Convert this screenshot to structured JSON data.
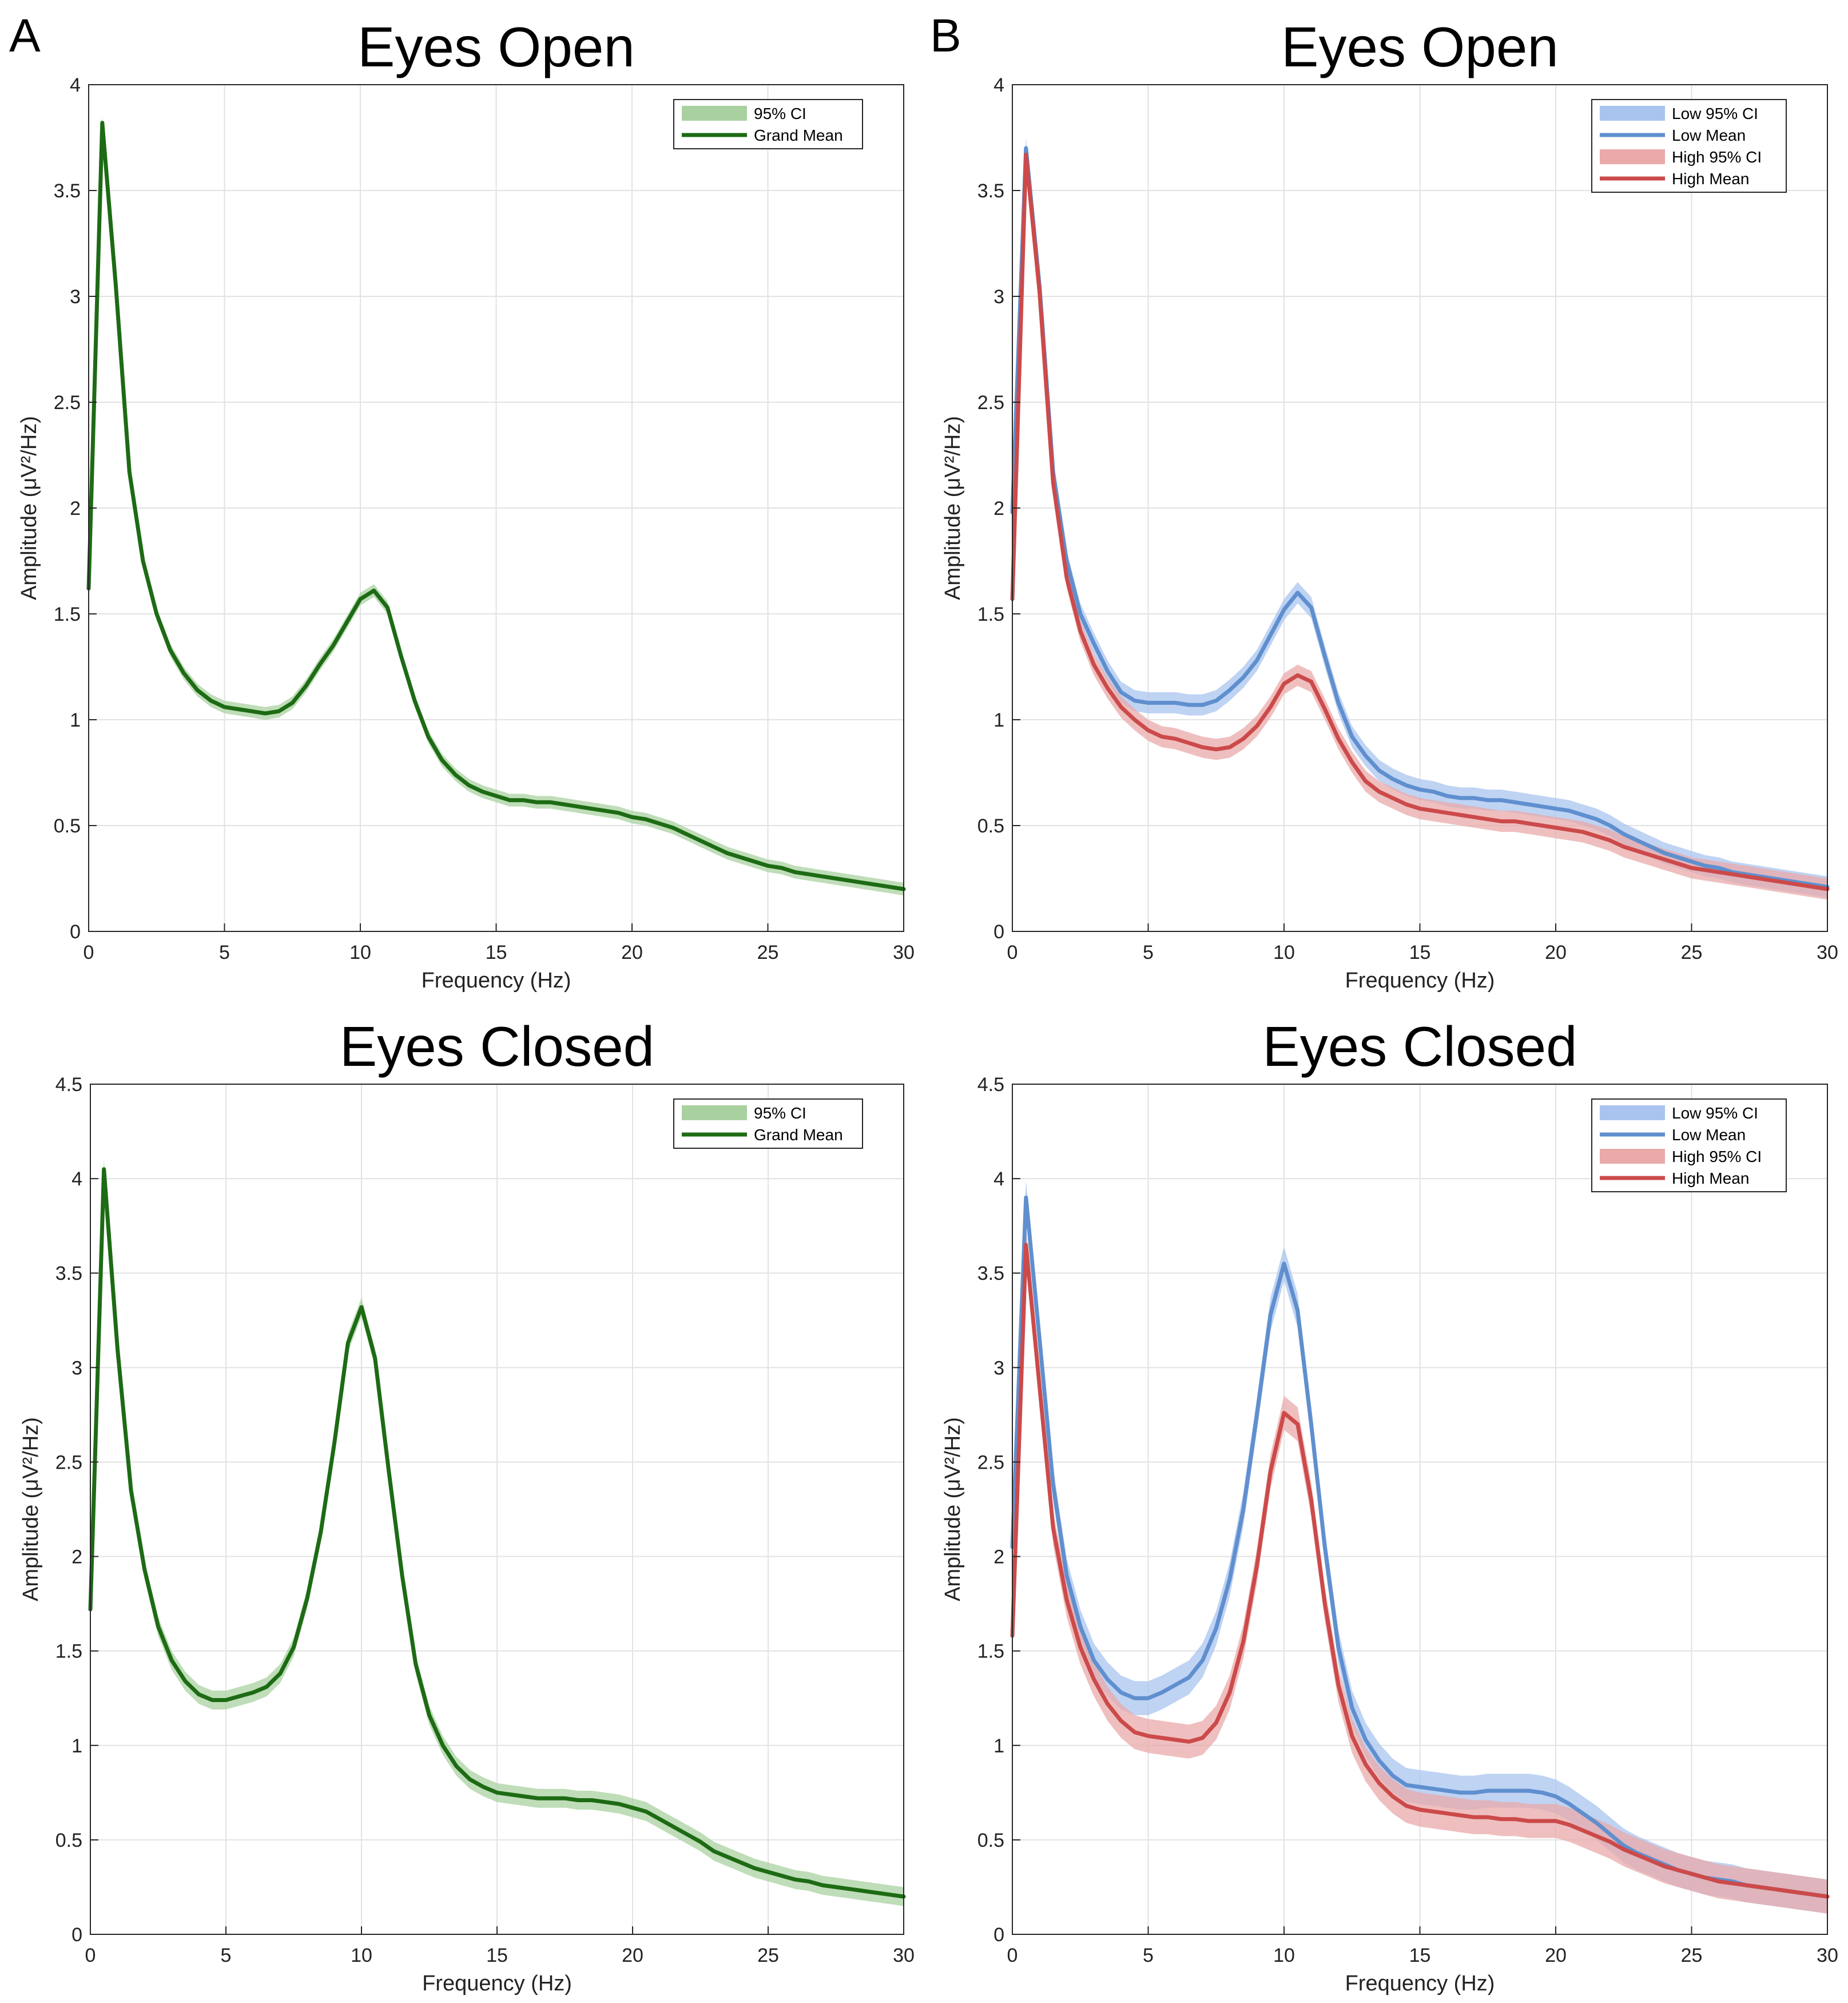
{
  "panel_letters": [
    "A",
    "B"
  ],
  "chart_data": [
    {
      "type": "line",
      "panel": "A",
      "title": "Eyes Open",
      "xlabel": "Frequency (Hz)",
      "ylabel": "Amplitude (μV²/Hz)",
      "xlim": [
        0,
        30
      ],
      "ylim": [
        0,
        4
      ],
      "xticks": [
        0,
        5,
        10,
        15,
        20,
        25,
        30
      ],
      "yticks": [
        0,
        0.5,
        1,
        1.5,
        2,
        2.5,
        3,
        3.5,
        4
      ],
      "grid": true,
      "legend": {
        "location": "top-right",
        "entries": [
          "95% CI",
          "Grand Mean"
        ]
      },
      "x": [
        0,
        0.5,
        1,
        1.5,
        2,
        2.5,
        3,
        3.5,
        4,
        4.5,
        5,
        5.5,
        6,
        6.5,
        7,
        7.5,
        8,
        8.5,
        9,
        9.5,
        10,
        10.5,
        11,
        11.5,
        12,
        12.5,
        13,
        13.5,
        14,
        14.5,
        15,
        15.5,
        16,
        16.5,
        17,
        17.5,
        18,
        18.5,
        19,
        19.5,
        20,
        20.5,
        21,
        21.5,
        22,
        22.5,
        23,
        23.5,
        24,
        24.5,
        25,
        25.5,
        26,
        26.5,
        27,
        27.5,
        28,
        28.5,
        29,
        29.5,
        30
      ],
      "series": [
        {
          "name": "Grand Mean",
          "color": "#1d6b14",
          "ci_color": "#a9d1a0",
          "ci": 0.03,
          "values": [
            1.62,
            3.82,
            3.05,
            2.17,
            1.75,
            1.5,
            1.33,
            1.22,
            1.14,
            1.09,
            1.06,
            1.05,
            1.04,
            1.03,
            1.04,
            1.08,
            1.16,
            1.26,
            1.35,
            1.46,
            1.57,
            1.61,
            1.53,
            1.3,
            1.09,
            0.92,
            0.81,
            0.74,
            0.69,
            0.66,
            0.64,
            0.62,
            0.62,
            0.61,
            0.61,
            0.6,
            0.59,
            0.58,
            0.57,
            0.56,
            0.54,
            0.53,
            0.51,
            0.49,
            0.46,
            0.43,
            0.4,
            0.37,
            0.35,
            0.33,
            0.31,
            0.3,
            0.28,
            0.27,
            0.26,
            0.25,
            0.24,
            0.23,
            0.22,
            0.21,
            0.2
          ]
        }
      ]
    },
    {
      "type": "line",
      "panel": "B",
      "title": "Eyes Open",
      "xlabel": "Frequency (Hz)",
      "ylabel": "Amplitude (μV²/Hz)",
      "xlim": [
        0,
        30
      ],
      "ylim": [
        0,
        4
      ],
      "xticks": [
        0,
        5,
        10,
        15,
        20,
        25,
        30
      ],
      "yticks": [
        0,
        0.5,
        1,
        1.5,
        2,
        2.5,
        3,
        3.5,
        4
      ],
      "grid": true,
      "legend": {
        "location": "top-right",
        "entries": [
          "Low 95% CI",
          "Low Mean",
          "High 95% CI",
          "High Mean"
        ]
      },
      "x": [
        0,
        0.5,
        1,
        1.5,
        2,
        2.5,
        3,
        3.5,
        4,
        4.5,
        5,
        5.5,
        6,
        6.5,
        7,
        7.5,
        8,
        8.5,
        9,
        9.5,
        10,
        10.5,
        11,
        11.5,
        12,
        12.5,
        13,
        13.5,
        14,
        14.5,
        15,
        15.5,
        16,
        16.5,
        17,
        17.5,
        18,
        18.5,
        19,
        19.5,
        20,
        20.5,
        21,
        21.5,
        22,
        22.5,
        23,
        23.5,
        24,
        24.5,
        25,
        25.5,
        26,
        26.5,
        27,
        27.5,
        28,
        28.5,
        29,
        29.5,
        30
      ],
      "series": [
        {
          "name": "Low Mean",
          "color": "#5f8fce",
          "ci_color": "#a9c4ef",
          "ci": 0.05,
          "values": [
            1.98,
            3.7,
            3.05,
            2.17,
            1.75,
            1.5,
            1.36,
            1.23,
            1.13,
            1.09,
            1.08,
            1.08,
            1.08,
            1.07,
            1.07,
            1.09,
            1.14,
            1.2,
            1.28,
            1.4,
            1.52,
            1.6,
            1.53,
            1.3,
            1.08,
            0.92,
            0.83,
            0.76,
            0.72,
            0.69,
            0.67,
            0.66,
            0.64,
            0.63,
            0.63,
            0.62,
            0.62,
            0.61,
            0.6,
            0.59,
            0.58,
            0.57,
            0.55,
            0.53,
            0.5,
            0.46,
            0.43,
            0.4,
            0.37,
            0.35,
            0.33,
            0.31,
            0.3,
            0.28,
            0.27,
            0.26,
            0.25,
            0.24,
            0.23,
            0.22,
            0.21
          ]
        },
        {
          "name": "High Mean",
          "color": "#cc4a4a",
          "ci_color": "#e9aaa9",
          "ci": 0.05,
          "values": [
            1.57,
            3.67,
            3.02,
            2.12,
            1.67,
            1.42,
            1.26,
            1.15,
            1.06,
            1.0,
            0.95,
            0.92,
            0.91,
            0.89,
            0.87,
            0.86,
            0.87,
            0.91,
            0.97,
            1.06,
            1.17,
            1.21,
            1.18,
            1.05,
            0.91,
            0.8,
            0.71,
            0.66,
            0.63,
            0.6,
            0.58,
            0.57,
            0.56,
            0.55,
            0.54,
            0.53,
            0.52,
            0.52,
            0.51,
            0.5,
            0.49,
            0.48,
            0.47,
            0.45,
            0.43,
            0.4,
            0.38,
            0.36,
            0.34,
            0.32,
            0.3,
            0.29,
            0.28,
            0.27,
            0.26,
            0.25,
            0.24,
            0.23,
            0.22,
            0.21,
            0.2
          ]
        }
      ]
    },
    {
      "type": "line",
      "panel": "A",
      "title": "Eyes Closed",
      "xlabel": "Frequency (Hz)",
      "ylabel": "Amplitude (μV²/Hz)",
      "xlim": [
        0,
        30
      ],
      "ylim": [
        0,
        4.5
      ],
      "xticks": [
        0,
        5,
        10,
        15,
        20,
        25,
        30
      ],
      "yticks": [
        0,
        0.5,
        1,
        1.5,
        2,
        2.5,
        3,
        3.5,
        4,
        4.5
      ],
      "grid": true,
      "legend": {
        "location": "top-right",
        "entries": [
          "95% CI",
          "Grand Mean"
        ]
      },
      "x": [
        0,
        0.5,
        1,
        1.5,
        2,
        2.5,
        3,
        3.5,
        4,
        4.5,
        5,
        5.5,
        6,
        6.5,
        7,
        7.5,
        8,
        8.5,
        9,
        9.5,
        10,
        10.5,
        11,
        11.5,
        12,
        12.5,
        13,
        13.5,
        14,
        14.5,
        15,
        15.5,
        16,
        16.5,
        17,
        17.5,
        18,
        18.5,
        19,
        19.5,
        20,
        20.5,
        21,
        21.5,
        22,
        22.5,
        23,
        23.5,
        24,
        24.5,
        25,
        25.5,
        26,
        26.5,
        27,
        27.5,
        28,
        28.5,
        29,
        29.5,
        30
      ],
      "series": [
        {
          "name": "Grand Mean",
          "color": "#1d6b14",
          "ci_color": "#a9d1a0",
          "ci": 0.05,
          "values": [
            1.72,
            4.05,
            3.1,
            2.35,
            1.93,
            1.63,
            1.45,
            1.34,
            1.27,
            1.24,
            1.24,
            1.26,
            1.28,
            1.31,
            1.38,
            1.52,
            1.78,
            2.13,
            2.6,
            3.13,
            3.32,
            3.05,
            2.46,
            1.9,
            1.43,
            1.16,
            1.0,
            0.89,
            0.82,
            0.78,
            0.75,
            0.74,
            0.73,
            0.72,
            0.72,
            0.72,
            0.71,
            0.71,
            0.7,
            0.69,
            0.67,
            0.65,
            0.61,
            0.57,
            0.53,
            0.49,
            0.44,
            0.41,
            0.38,
            0.35,
            0.33,
            0.31,
            0.29,
            0.28,
            0.26,
            0.25,
            0.24,
            0.23,
            0.22,
            0.21,
            0.2
          ]
        }
      ]
    },
    {
      "type": "line",
      "panel": "B",
      "title": "Eyes Closed",
      "xlabel": "Frequency (Hz)",
      "ylabel": "Amplitude (μV²/Hz)",
      "xlim": [
        0,
        30
      ],
      "ylim": [
        0,
        4.5
      ],
      "xticks": [
        0,
        5,
        10,
        15,
        20,
        25,
        30
      ],
      "yticks": [
        0,
        0.5,
        1,
        1.5,
        2,
        2.5,
        3,
        3.5,
        4,
        4.5
      ],
      "grid": true,
      "legend": {
        "location": "top-right",
        "entries": [
          "Low 95% CI",
          "Low Mean",
          "High 95% CI",
          "High Mean"
        ]
      },
      "x": [
        0,
        0.5,
        1,
        1.5,
        2,
        2.5,
        3,
        3.5,
        4,
        4.5,
        5,
        5.5,
        6,
        6.5,
        7,
        7.5,
        8,
        8.5,
        9,
        9.5,
        10,
        10.5,
        11,
        11.5,
        12,
        12.5,
        13,
        13.5,
        14,
        14.5,
        15,
        15.5,
        16,
        16.5,
        17,
        17.5,
        18,
        18.5,
        19,
        19.5,
        20,
        20.5,
        21,
        21.5,
        22,
        22.5,
        23,
        23.5,
        24,
        24.5,
        25,
        25.5,
        26,
        26.5,
        27,
        27.5,
        28,
        28.5,
        29,
        29.5,
        30
      ],
      "series": [
        {
          "name": "Low Mean",
          "color": "#5f8fce",
          "ci_color": "#a9c4ef",
          "ci": 0.09,
          "values": [
            2.05,
            3.9,
            3.15,
            2.38,
            1.9,
            1.63,
            1.45,
            1.35,
            1.28,
            1.25,
            1.25,
            1.28,
            1.32,
            1.36,
            1.45,
            1.62,
            1.88,
            2.25,
            2.75,
            3.28,
            3.55,
            3.3,
            2.7,
            2.05,
            1.52,
            1.2,
            1.03,
            0.92,
            0.84,
            0.79,
            0.78,
            0.77,
            0.76,
            0.75,
            0.75,
            0.76,
            0.76,
            0.76,
            0.76,
            0.75,
            0.73,
            0.69,
            0.64,
            0.59,
            0.53,
            0.47,
            0.43,
            0.4,
            0.37,
            0.34,
            0.32,
            0.3,
            0.29,
            0.28,
            0.26,
            0.25,
            0.24,
            0.23,
            0.22,
            0.21,
            0.2
          ]
        },
        {
          "name": "High Mean",
          "color": "#cc4a4a",
          "ci_color": "#e9aaa9",
          "ci": 0.09,
          "values": [
            1.58,
            3.65,
            2.9,
            2.15,
            1.77,
            1.52,
            1.35,
            1.22,
            1.13,
            1.07,
            1.05,
            1.04,
            1.03,
            1.02,
            1.04,
            1.12,
            1.28,
            1.55,
            1.95,
            2.45,
            2.76,
            2.7,
            2.3,
            1.75,
            1.32,
            1.05,
            0.9,
            0.8,
            0.73,
            0.68,
            0.66,
            0.65,
            0.64,
            0.63,
            0.62,
            0.62,
            0.61,
            0.61,
            0.6,
            0.6,
            0.6,
            0.58,
            0.55,
            0.52,
            0.49,
            0.45,
            0.42,
            0.39,
            0.36,
            0.34,
            0.32,
            0.3,
            0.28,
            0.27,
            0.26,
            0.25,
            0.24,
            0.23,
            0.22,
            0.21,
            0.2
          ]
        }
      ]
    }
  ]
}
